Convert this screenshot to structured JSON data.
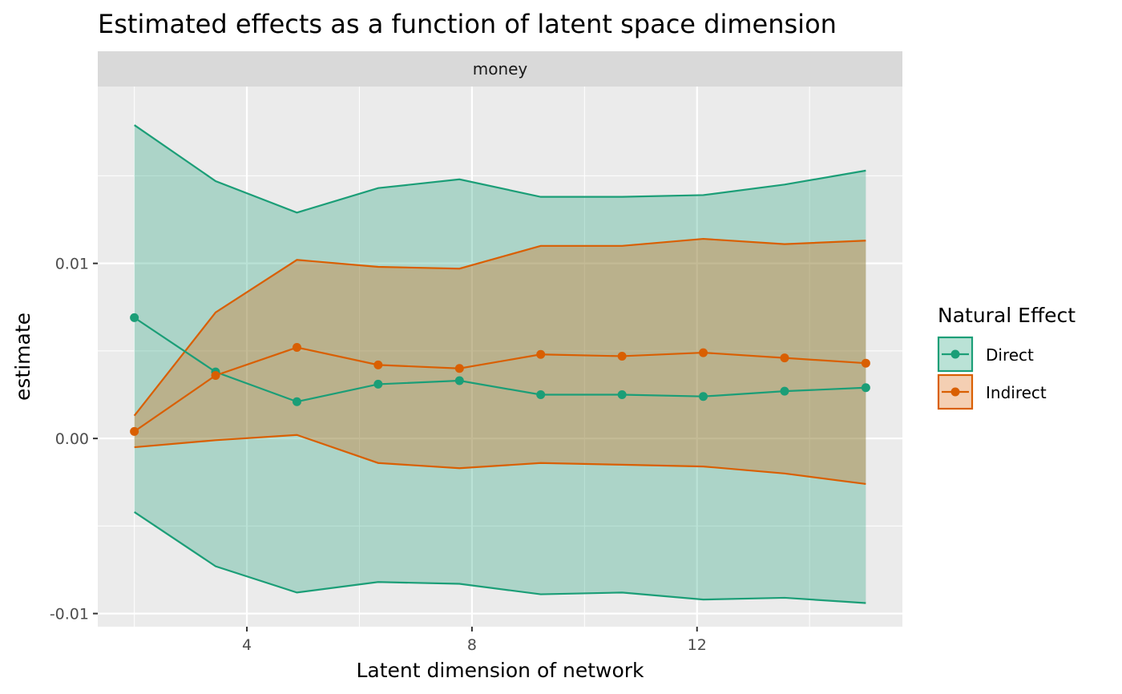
{
  "chart_data": {
    "type": "line",
    "title": "Estimated effects as a function of latent space dimension",
    "facet": "money",
    "xlabel": "Latent dimension of network",
    "ylabel": "estimate",
    "xlim": [
      1.35,
      15.65
    ],
    "ylim": [
      -0.01075,
      0.0201
    ],
    "x_ticks": [
      4,
      8,
      12
    ],
    "x_tick_labels": [
      "4",
      "8",
      "12"
    ],
    "y_ticks": [
      -0.01,
      0.0,
      0.01
    ],
    "y_tick_labels": [
      "-0.01",
      "0.00",
      "0.01"
    ],
    "grid": true,
    "legend": {
      "title": "Natural Effect",
      "position": "right"
    },
    "x": [
      2,
      3.444,
      4.889,
      6.333,
      7.778,
      9.222,
      10.667,
      12.111,
      13.556,
      15
    ],
    "series": [
      {
        "name": "Direct",
        "color": "#1b9e77",
        "estimate": [
          0.0069,
          0.0038,
          0.0021,
          0.0031,
          0.0033,
          0.0025,
          0.0025,
          0.0024,
          0.0027,
          0.0029
        ],
        "lower": [
          -0.0042,
          -0.0073,
          -0.0088,
          -0.0082,
          -0.0083,
          -0.0089,
          -0.0088,
          -0.0092,
          -0.0091,
          -0.0094
        ],
        "upper": [
          0.0179,
          0.0147,
          0.0129,
          0.0143,
          0.0148,
          0.0138,
          0.0138,
          0.0139,
          0.0145,
          0.0153
        ]
      },
      {
        "name": "Indirect",
        "color": "#d95f02",
        "estimate": [
          0.0004,
          0.0036,
          0.0052,
          0.0042,
          0.004,
          0.0048,
          0.0047,
          0.0049,
          0.0046,
          0.0043
        ],
        "lower": [
          -0.0005,
          -0.0001,
          0.0002,
          -0.0014,
          -0.0017,
          -0.0014,
          -0.0015,
          -0.0016,
          -0.002,
          -0.0026
        ],
        "upper": [
          0.0013,
          0.0072,
          0.0102,
          0.0098,
          0.0097,
          0.011,
          0.011,
          0.0114,
          0.0111,
          0.0113
        ]
      }
    ]
  }
}
